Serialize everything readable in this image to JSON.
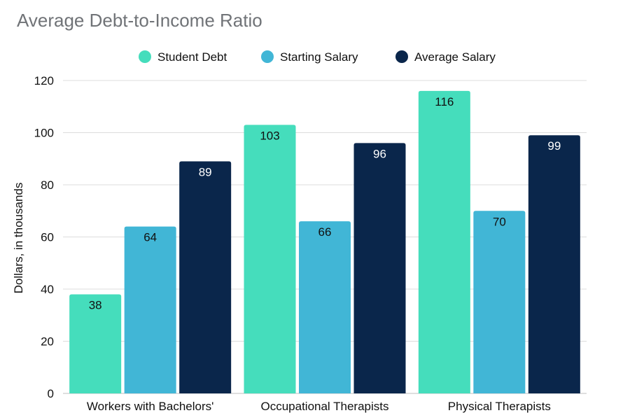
{
  "chart_data": {
    "type": "bar",
    "title": "Average Debt-to-Income Ratio",
    "ylabel": "Dollars, in thousands",
    "xlabel": "",
    "categories": [
      "Workers with Bachelors'",
      "Occupational Therapists",
      "Physical Therapists"
    ],
    "series": [
      {
        "name": "Student Debt",
        "values": [
          38,
          103,
          116
        ],
        "color": "#45ddbc",
        "label_color": "#111111"
      },
      {
        "name": "Starting Salary",
        "values": [
          64,
          66,
          70
        ],
        "color": "#41b6d6",
        "label_color": "#111111"
      },
      {
        "name": "Average Salary",
        "values": [
          89,
          96,
          99
        ],
        "color": "#0a264b",
        "label_color": "#ffffff"
      }
    ],
    "ylim": [
      0,
      120
    ],
    "yticks": [
      0,
      20,
      40,
      60,
      80,
      100,
      120
    ],
    "grid": true,
    "legend_position": "top-center"
  }
}
